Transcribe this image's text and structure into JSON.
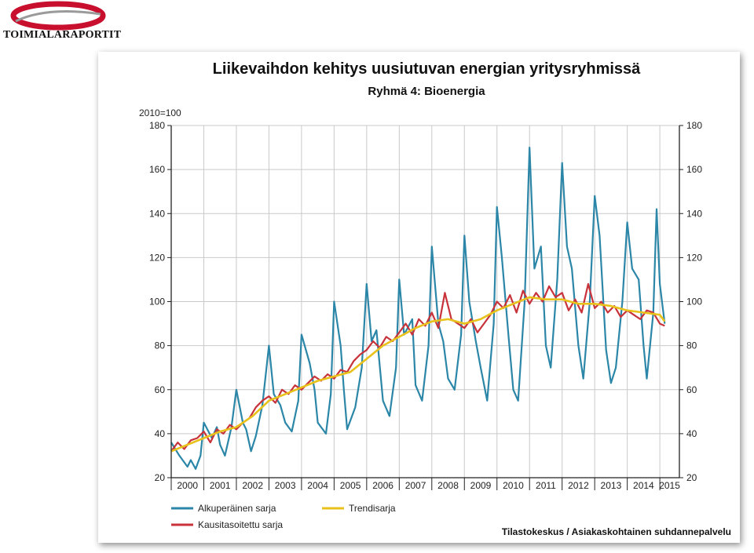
{
  "logo": {
    "text": "TOIMIALARAPORTIT"
  },
  "chart_data": {
    "type": "line",
    "title": "Liikevaihdon kehitys uusiutuvan energian yritysryhmissä",
    "subtitle": "Ryhmä 4: Bioenergia",
    "ylabel": "2010=100",
    "ylim": [
      20,
      180
    ],
    "yticks": [
      20,
      40,
      60,
      80,
      100,
      120,
      140,
      160,
      180
    ],
    "xlim": [
      2000,
      2015.6
    ],
    "xticks": [
      "2000",
      "2001",
      "2002",
      "2003",
      "2004",
      "2005",
      "2006",
      "2007",
      "2008",
      "2009",
      "2010",
      "2011",
      "2012",
      "2013",
      "2014",
      "2015"
    ],
    "grid": true,
    "legend_position": "bottom-left",
    "source": "Tilastokeskus / Asiakaskohtainen suhdannepalvelu",
    "series": [
      {
        "name": "Alkuperäinen sarja",
        "color": "#2b86a8",
        "x": [
          2000.0,
          2000.25,
          2000.5,
          2000.6,
          2000.75,
          2000.9,
          2001.0,
          2001.25,
          2001.4,
          2001.5,
          2001.65,
          2001.85,
          2002.0,
          2002.2,
          2002.3,
          2002.45,
          2002.6,
          2002.8,
          2003.0,
          2003.15,
          2003.35,
          2003.5,
          2003.7,
          2003.9,
          2004.0,
          2004.25,
          2004.4,
          2004.5,
          2004.75,
          2004.9,
          2005.0,
          2005.2,
          2005.3,
          2005.4,
          2005.65,
          2005.85,
          2006.0,
          2006.15,
          2006.3,
          2006.5,
          2006.7,
          2006.9,
          2007.0,
          2007.15,
          2007.4,
          2007.5,
          2007.7,
          2007.9,
          2008.0,
          2008.2,
          2008.35,
          2008.5,
          2008.7,
          2008.9,
          2009.0,
          2009.15,
          2009.35,
          2009.5,
          2009.7,
          2009.9,
          2010.0,
          2010.15,
          2010.35,
          2010.5,
          2010.65,
          2010.85,
          2011.0,
          2011.15,
          2011.35,
          2011.5,
          2011.65,
          2011.85,
          2012.0,
          2012.15,
          2012.3,
          2012.5,
          2012.65,
          2012.85,
          2013.0,
          2013.15,
          2013.35,
          2013.5,
          2013.65,
          2013.85,
          2014.0,
          2014.15,
          2014.35,
          2014.5,
          2014.6,
          2014.8,
          2014.9,
          2015.0,
          2015.15
        ],
        "y": [
          36,
          30,
          25,
          28,
          24,
          30,
          45,
          38,
          43,
          35,
          30,
          43,
          60,
          45,
          42,
          32,
          39,
          53,
          80,
          58,
          53,
          45,
          41,
          55,
          85,
          72,
          60,
          45,
          40,
          58,
          100,
          80,
          60,
          42,
          52,
          70,
          108,
          82,
          87,
          55,
          48,
          70,
          110,
          85,
          92,
          62,
          55,
          80,
          125,
          90,
          82,
          65,
          60,
          85,
          130,
          100,
          82,
          70,
          55,
          90,
          143,
          120,
          85,
          60,
          55,
          100,
          170,
          115,
          125,
          80,
          70,
          110,
          163,
          125,
          115,
          80,
          65,
          100,
          148,
          130,
          78,
          63,
          70,
          100,
          136,
          115,
          110,
          80,
          65,
          95,
          142,
          108,
          90
        ],
        "x_note": ""
      },
      {
        "name": "Kausitasoitettu sarja",
        "color": "#c8323a",
        "x": [
          2000.0,
          2000.2,
          2000.4,
          2000.6,
          2000.8,
          2001.0,
          2001.2,
          2001.4,
          2001.6,
          2001.8,
          2002.0,
          2002.2,
          2002.4,
          2002.6,
          2002.8,
          2003.0,
          2003.2,
          2003.4,
          2003.6,
          2003.8,
          2004.0,
          2004.2,
          2004.4,
          2004.6,
          2004.8,
          2005.0,
          2005.2,
          2005.4,
          2005.6,
          2005.8,
          2006.0,
          2006.2,
          2006.4,
          2006.6,
          2006.8,
          2007.0,
          2007.2,
          2007.4,
          2007.6,
          2007.8,
          2008.0,
          2008.2,
          2008.4,
          2008.6,
          2008.8,
          2009.0,
          2009.2,
          2009.4,
          2009.6,
          2009.8,
          2010.0,
          2010.2,
          2010.4,
          2010.6,
          2010.8,
          2011.0,
          2011.2,
          2011.4,
          2011.6,
          2011.8,
          2012.0,
          2012.2,
          2012.4,
          2012.6,
          2012.8,
          2013.0,
          2013.2,
          2013.4,
          2013.6,
          2013.8,
          2014.0,
          2014.2,
          2014.4,
          2014.6,
          2014.8,
          2015.0,
          2015.15
        ],
        "y": [
          32,
          36,
          33,
          37,
          38,
          41,
          36,
          42,
          40,
          44,
          42,
          45,
          47,
          52,
          55,
          57,
          54,
          60,
          58,
          62,
          60,
          63,
          66,
          64,
          67,
          65,
          69,
          68,
          73,
          76,
          78,
          82,
          79,
          84,
          82,
          86,
          90,
          85,
          92,
          89,
          95,
          88,
          104,
          92,
          90,
          88,
          92,
          86,
          90,
          94,
          100,
          97,
          103,
          95,
          105,
          99,
          104,
          100,
          107,
          102,
          104,
          96,
          101,
          95,
          108,
          97,
          100,
          95,
          98,
          93,
          96,
          94,
          92,
          96,
          95,
          90,
          89
        ]
      },
      {
        "name": "Trendisarja",
        "color": "#e8c21a",
        "x": [
          2000.0,
          2000.5,
          2001.0,
          2001.5,
          2002.0,
          2002.5,
          2003.0,
          2003.5,
          2004.0,
          2004.5,
          2005.0,
          2005.5,
          2006.0,
          2006.5,
          2007.0,
          2007.5,
          2008.0,
          2008.5,
          2009.0,
          2009.5,
          2010.0,
          2010.5,
          2011.0,
          2011.5,
          2012.0,
          2012.5,
          2013.0,
          2013.5,
          2014.0,
          2014.5,
          2015.0,
          2015.15
        ],
        "y": [
          32,
          35,
          38,
          41,
          43,
          48,
          55,
          58,
          61,
          64,
          66,
          68,
          74,
          80,
          84,
          88,
          91,
          92,
          90,
          92,
          96,
          99,
          102,
          101,
          101,
          99,
          99,
          98,
          96,
          95,
          94,
          91
        ]
      }
    ]
  }
}
